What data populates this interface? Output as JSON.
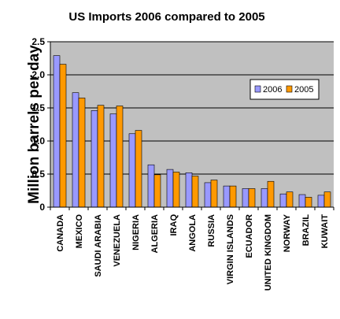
{
  "chart_data": {
    "type": "bar",
    "title": "US Imports 2006 compared to 2005",
    "ylabel": "Million barrels per day",
    "xlabel": "",
    "ylim": [
      0,
      2.5
    ],
    "yticks": [
      "0",
      "0.5",
      "1.0",
      "1.5",
      "2.0",
      "2.5"
    ],
    "grid": true,
    "legend_position": "right",
    "categories": [
      "CANADA",
      "MEXICO",
      "SAUDI ARABIA",
      "VENEZUELA",
      "NIGERIA",
      "ALGERIA",
      "IRAQ",
      "ANGOLA",
      "RUSSIA",
      "VIRGIN ISLANDS",
      "ECUADOR",
      "UNITED KINGDOM",
      "NORWAY",
      "BRAZIL",
      "KUWAIT"
    ],
    "series": [
      {
        "name": "2006",
        "color": "#9999ff",
        "values": [
          2.29,
          1.73,
          1.46,
          1.41,
          1.11,
          0.64,
          0.57,
          0.52,
          0.37,
          0.32,
          0.28,
          0.28,
          0.2,
          0.19,
          0.18
        ]
      },
      {
        "name": "2005",
        "color": "#ff9900",
        "values": [
          2.16,
          1.65,
          1.54,
          1.53,
          1.16,
          0.49,
          0.53,
          0.47,
          0.41,
          0.32,
          0.28,
          0.39,
          0.23,
          0.15,
          0.23
        ]
      }
    ]
  },
  "colors": {
    "plot_bg": "#c0c0c0",
    "bar_outline": "#000000"
  }
}
